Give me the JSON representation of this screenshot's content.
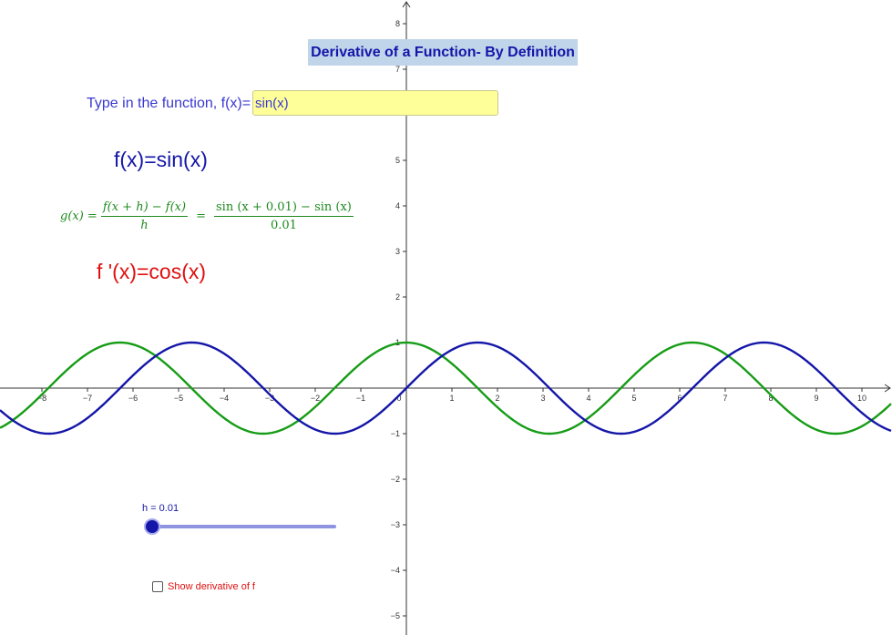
{
  "title": "Derivative of a Function- By Definition",
  "input": {
    "label": "Type in the function, f(x)=",
    "value": "sin(x)"
  },
  "function_display": "f(x)=sin(x)",
  "derivative_display": "f '(x)=cos(x)",
  "difference_quotient": {
    "lhs": "g(x) =",
    "general_num": "f(x + h) − f(x)",
    "general_den": "h",
    "eq": "=",
    "specific_num": "sin (x + 0.01) − sin (x)",
    "specific_den": "0.01"
  },
  "slider": {
    "label": "h = 0.01",
    "value": 0.01
  },
  "checkbox": {
    "label": "Show derivative of f",
    "checked": false
  },
  "chart_data": {
    "type": "line",
    "x_ticks": [
      "−8",
      "−7",
      "−6",
      "−5",
      "−4",
      "−3",
      "−2",
      "−1",
      "0",
      "1",
      "2",
      "3",
      "4",
      "5",
      "6",
      "7",
      "8",
      "9",
      "10"
    ],
    "y_ticks": [
      "8",
      "7",
      "5",
      "4",
      "3",
      "2",
      "1",
      "−1",
      "−2",
      "−3",
      "−4",
      "−5"
    ],
    "xlim": [
      -8.9,
      10.6
    ],
    "ylim": [
      -5.4,
      8.5
    ],
    "series": [
      {
        "function": "sin(x)",
        "color": "#1416a8"
      },
      {
        "function": "(sin(x + 0.01) − sin(x)) / 0.01",
        "color": "#169c16"
      }
    ]
  }
}
